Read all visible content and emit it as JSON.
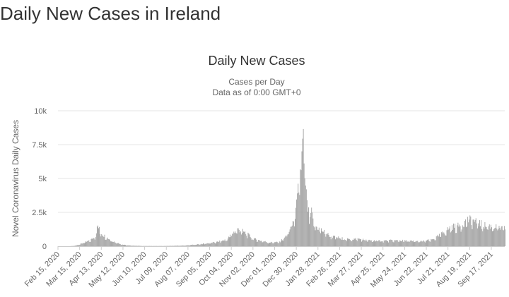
{
  "page": {
    "heading": "Daily New Cases in Ireland"
  },
  "chart_data": {
    "type": "bar",
    "title": "Daily New Cases",
    "subtitle_lines": [
      "Cases per Day",
      "Data as of 0:00 GMT+0"
    ],
    "ylabel": "Novel Coronavirus Daily Cases",
    "xlabel": "",
    "ylim": [
      0,
      10000
    ],
    "y_ticks": [
      0,
      2500,
      5000,
      7500,
      10000
    ],
    "y_tick_labels": [
      "0",
      "2.5k",
      "5k",
      "7.5k",
      "10k"
    ],
    "x_range": [
      "2020-02-15",
      "2021-10-05"
    ],
    "x_tick_labels": [
      "Feb 15, 2020",
      "Mar 15, 2020",
      "Apr 13, 2020",
      "May 12, 2020",
      "Jun 10, 2020",
      "Jul 09, 2020",
      "Aug 07, 2020",
      "Sep 05, 2020",
      "Oct 04, 2020",
      "Nov 02, 2020",
      "Dec 01, 2020",
      "Dec 30, 2020",
      "Jan 28, 2021",
      "Feb 26, 2021",
      "Mar 27, 2021",
      "Apr 25, 2021",
      "May 24, 2021",
      "Jun 22, 2021",
      "Jul 21, 2021",
      "Aug 19, 2021",
      "Sep 17, 2021"
    ],
    "grid": true,
    "legend": "none",
    "colors": {
      "bar": "#a0a0a0",
      "grid": "#e6e6e6",
      "axis": "#cccccc",
      "text": "#666666",
      "title": "#333333"
    },
    "series": [
      {
        "x": [
          "2020-02-15",
          "2020-02-29",
          "2020-03-07",
          "2020-03-14",
          "2020-03-21",
          "2020-03-28",
          "2020-04-04",
          "2020-04-08",
          "2020-04-12",
          "2020-04-16",
          "2020-04-20",
          "2020-04-27",
          "2020-05-04",
          "2020-05-11",
          "2020-05-18",
          "2020-05-25",
          "2020-06-08",
          "2020-07-06",
          "2020-08-03",
          "2020-08-17",
          "2020-08-31",
          "2020-09-14",
          "2020-09-28",
          "2020-10-05",
          "2020-10-12",
          "2020-10-19",
          "2020-10-26",
          "2020-11-02",
          "2020-11-09",
          "2020-11-23",
          "2020-12-07",
          "2020-12-17",
          "2020-12-24",
          "2020-12-29",
          "2021-01-02",
          "2021-01-06",
          "2021-01-08",
          "2021-01-10",
          "2021-01-13",
          "2021-01-16",
          "2021-01-19",
          "2021-01-22",
          "2021-01-26",
          "2021-02-01",
          "2021-02-08",
          "2021-02-15",
          "2021-02-22",
          "2021-03-08",
          "2021-03-22",
          "2021-04-05",
          "2021-04-19",
          "2021-05-03",
          "2021-05-17",
          "2021-05-31",
          "2021-06-14",
          "2021-06-28",
          "2021-07-05",
          "2021-07-12",
          "2021-07-19",
          "2021-07-26",
          "2021-08-02",
          "2021-08-09",
          "2021-08-16",
          "2021-08-23",
          "2021-08-30",
          "2021-09-06",
          "2021-09-13",
          "2021-09-20",
          "2021-09-27",
          "2021-10-05"
        ],
        "values": [
          0,
          0,
          20,
          120,
          280,
          400,
          700,
          1500,
          1000,
          800,
          650,
          400,
          250,
          120,
          60,
          40,
          15,
          15,
          50,
          120,
          200,
          300,
          500,
          950,
          1250,
          1100,
          850,
          550,
          450,
          280,
          300,
          800,
          1600,
          2500,
          4500,
          6500,
          8200,
          5500,
          3000,
          2200,
          2500,
          1600,
          1400,
          1200,
          950,
          700,
          650,
          500,
          550,
          420,
          400,
          420,
          420,
          380,
          350,
          450,
          650,
          900,
          1200,
          1450,
          1450,
          1650,
          1950,
          1900,
          1750,
          1550,
          1500,
          1450,
          1350,
          1300
        ]
      }
    ]
  }
}
